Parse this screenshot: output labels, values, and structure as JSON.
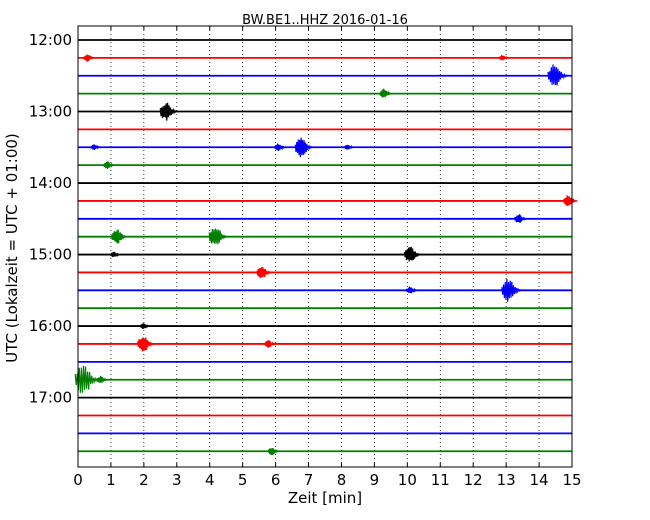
{
  "chart_data": {
    "type": "line",
    "title": "BW.BE1..HHZ 2016-01-16",
    "xlabel": "Zeit  [min]",
    "ylabel": "UTC (Lokalzeit = UTC + 01:00)",
    "xlim": [
      0,
      15
    ],
    "x_ticks": [
      "0",
      "1",
      "2",
      "3",
      "4",
      "5",
      "6",
      "7",
      "8",
      "9",
      "10",
      "11",
      "12",
      "13",
      "14",
      "15"
    ],
    "y_ticks": [
      "12:00",
      "13:00",
      "14:00",
      "15:00",
      "16:00",
      "17:00"
    ],
    "grid": "vertical dotted",
    "row_interval_min": 15,
    "colors": [
      "#000000",
      "#ff0000",
      "#0000ff",
      "#008000"
    ],
    "rows": [
      {
        "time": "12:00",
        "color": "#000000",
        "events": []
      },
      {
        "time": "12:15",
        "color": "#ff0000",
        "events": [
          [
            0.3,
            4
          ],
          [
            12.9,
            3
          ]
        ]
      },
      {
        "time": "12:30",
        "color": "#0000ff",
        "events": [
          [
            14.5,
            12
          ]
        ]
      },
      {
        "time": "12:45",
        "color": "#008000",
        "events": [
          [
            9.3,
            5
          ]
        ]
      },
      {
        "time": "13:00",
        "color": "#000000",
        "events": [
          [
            2.7,
            10
          ]
        ]
      },
      {
        "time": "13:15",
        "color": "#ff0000",
        "events": []
      },
      {
        "time": "13:30",
        "color": "#0000ff",
        "events": [
          [
            0.5,
            3
          ],
          [
            6.8,
            10
          ],
          [
            6.1,
            4
          ],
          [
            8.2,
            3
          ]
        ]
      },
      {
        "time": "13:45",
        "color": "#008000",
        "events": [
          [
            0.9,
            4
          ]
        ]
      },
      {
        "time": "14:00",
        "color": "#000000",
        "events": []
      },
      {
        "time": "14:15",
        "color": "#ff0000",
        "events": [
          [
            14.9,
            6
          ]
        ]
      },
      {
        "time": "14:30",
        "color": "#0000ff",
        "events": [
          [
            13.4,
            5
          ]
        ]
      },
      {
        "time": "14:45",
        "color": "#008000",
        "events": [
          [
            1.2,
            8
          ],
          [
            4.2,
            11
          ]
        ]
      },
      {
        "time": "15:00",
        "color": "#000000",
        "events": [
          [
            1.1,
            3
          ],
          [
            10.1,
            9
          ]
        ]
      },
      {
        "time": "15:15",
        "color": "#ff0000",
        "events": [
          [
            5.6,
            7
          ]
        ]
      },
      {
        "time": "15:30",
        "color": "#0000ff",
        "events": [
          [
            10.1,
            4
          ],
          [
            13.1,
            12
          ]
        ]
      },
      {
        "time": "15:45",
        "color": "#008000",
        "events": []
      },
      {
        "time": "16:00",
        "color": "#000000",
        "events": [
          [
            2.0,
            3
          ]
        ]
      },
      {
        "time": "16:15",
        "color": "#ff0000",
        "events": [
          [
            2.0,
            9
          ],
          [
            5.8,
            4
          ]
        ]
      },
      {
        "time": "16:30",
        "color": "#0000ff",
        "events": []
      },
      {
        "time": "16:45",
        "color": "#008000",
        "events": [
          [
            0.2,
            16
          ],
          [
            0.7,
            4
          ]
        ]
      },
      {
        "time": "17:00",
        "color": "#000000",
        "events": []
      },
      {
        "time": "17:15",
        "color": "#ff0000",
        "events": []
      },
      {
        "time": "17:30",
        "color": "#0000ff",
        "events": []
      },
      {
        "time": "17:45",
        "color": "#008000",
        "events": [
          [
            5.9,
            4
          ]
        ]
      }
    ]
  }
}
